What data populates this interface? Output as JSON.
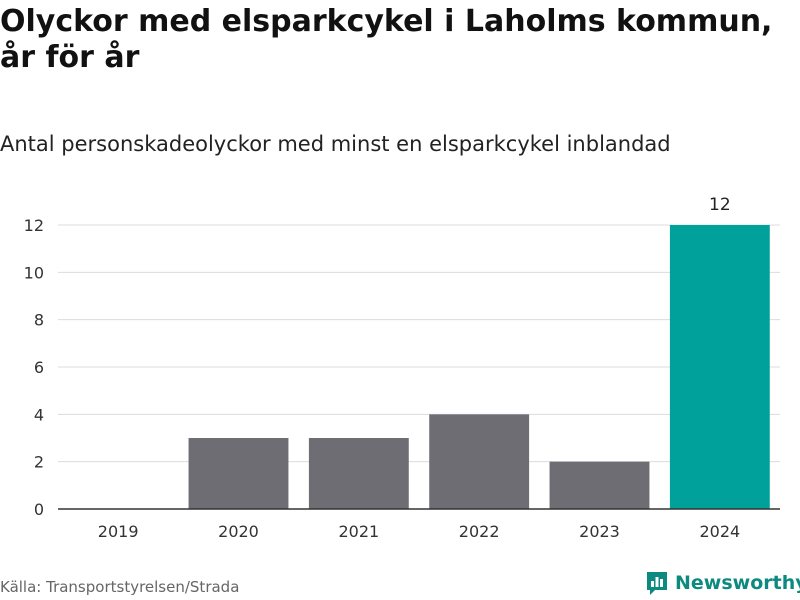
{
  "header": {
    "title": "Olyckor med elsparkcykel i Laholms kommun, år för år",
    "subtitle": "Antal personskadeolyckor med minst en elsparkcykel inblandad"
  },
  "footer": {
    "source": "Källa: Transportstyrelsen/Strada",
    "brand": "Newsworthy",
    "brand_icon": "bar-chart-logo-icon"
  },
  "colors": {
    "bar_default": "#6e6d73",
    "bar_highlight": "#00a19a",
    "grid": "#dcdcdc",
    "axis": "#333333",
    "brand": "#0d8a7f"
  },
  "chart_data": {
    "type": "bar",
    "categories": [
      "2019",
      "2020",
      "2021",
      "2022",
      "2023",
      "2024"
    ],
    "values": [
      0,
      3,
      3,
      4,
      2,
      12
    ],
    "highlight_index": 5,
    "data_labels": [
      {
        "index": 5,
        "text": "12"
      }
    ],
    "title": "Olyckor med elsparkcykel i Laholms kommun, år för år",
    "subtitle": "Antal personskadeolyckor med minst en elsparkcykel inblandad",
    "xlabel": "",
    "ylabel": "",
    "ylim": [
      0,
      12
    ],
    "yticks": [
      0,
      2,
      4,
      6,
      8,
      10,
      12
    ],
    "grid": true,
    "legend": "none"
  }
}
